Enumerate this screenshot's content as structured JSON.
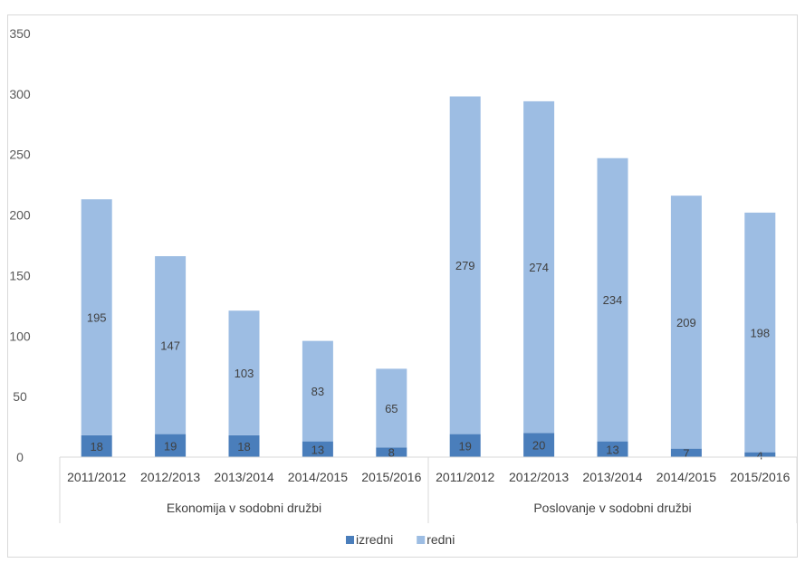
{
  "chart_data": {
    "type": "bar",
    "stacked": true,
    "groups": [
      {
        "label": "Ekonomija v sodobni družbi",
        "categories": [
          "2011/2012",
          "2012/2013",
          "2013/2014",
          "2014/2015",
          "2015/2016"
        ]
      },
      {
        "label": "Poslovanje v sodobni družbi",
        "categories": [
          "2011/2012",
          "2012/2013",
          "2013/2014",
          "2014/2015",
          "2015/2016"
        ]
      }
    ],
    "series": [
      {
        "name": "izredni",
        "color": "#4a7ebb",
        "values": [
          18,
          19,
          18,
          13,
          8,
          19,
          20,
          13,
          7,
          4
        ]
      },
      {
        "name": "redni",
        "color": "#9dbde3",
        "values": [
          195,
          147,
          103,
          83,
          65,
          279,
          274,
          234,
          209,
          198
        ]
      }
    ],
    "ylim": [
      0,
      350
    ],
    "yticks": [
      0,
      50,
      100,
      150,
      200,
      250,
      300,
      350
    ],
    "grid": false,
    "data_labels": true,
    "legend_position": "bottom"
  }
}
